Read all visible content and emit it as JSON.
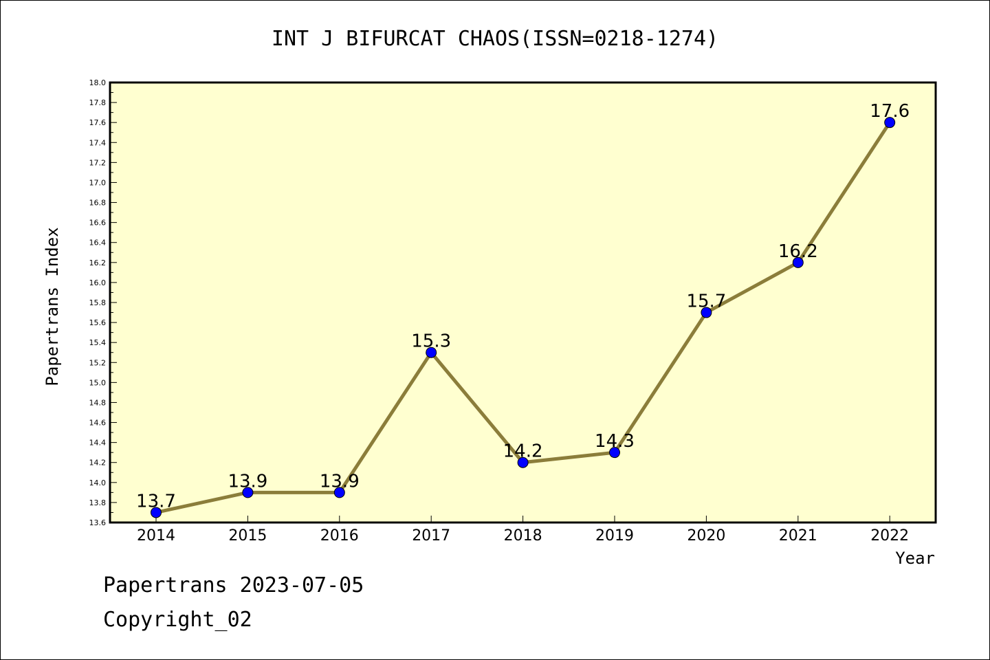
{
  "chart_data": {
    "type": "line",
    "title": "INT J BIFURCAT CHAOS(ISSN=0218-1274)",
    "xlabel": "Year",
    "ylabel": "Papertrans Index",
    "categories": [
      "2014",
      "2015",
      "2016",
      "2017",
      "2018",
      "2019",
      "2020",
      "2021",
      "2022"
    ],
    "values": [
      13.7,
      13.9,
      13.9,
      15.3,
      14.2,
      14.3,
      15.7,
      16.2,
      17.6
    ],
    "data_labels": [
      "13.7",
      "13.9",
      "13.9",
      "15.3",
      "14.2",
      "14.3",
      "15.7",
      "16.2",
      "17.6"
    ],
    "ylim": [
      13.6,
      18.0
    ],
    "yticks": [
      "13.6",
      "13.8",
      "14.0",
      "14.2",
      "14.4",
      "14.6",
      "14.8",
      "15.0",
      "15.2",
      "15.4",
      "15.6",
      "15.8",
      "16.0",
      "16.2",
      "16.4",
      "16.6",
      "16.8",
      "17.0",
      "17.2",
      "17.4",
      "17.6",
      "17.8",
      "18.0"
    ],
    "grid": false,
    "colors": {
      "plot_background": "#ffffd0",
      "line": "#8b7d3a",
      "marker": "#0000ff"
    }
  },
  "footer": {
    "line1": "Papertrans 2023-07-05",
    "line2": "Copyright_02"
  }
}
